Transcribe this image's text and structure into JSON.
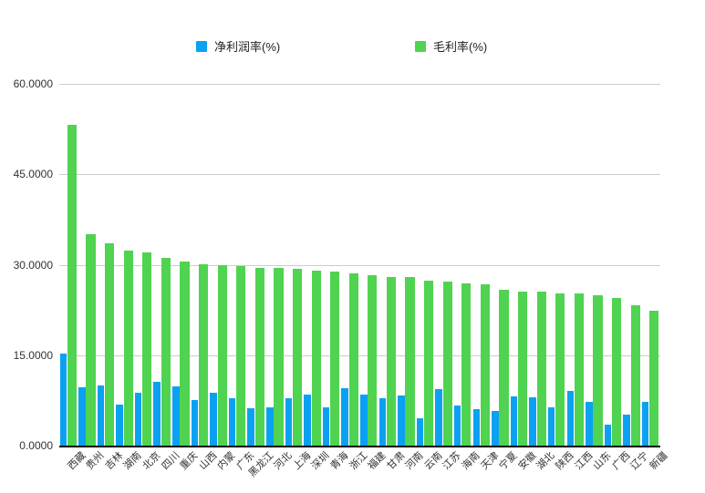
{
  "colors": {
    "net_margin_blue": "#0aa1f2",
    "gross_margin_green": "#50d350",
    "gridline": "#cccccc",
    "axis": "#000000",
    "tick_text": "#333333"
  },
  "chart_data": {
    "type": "bar",
    "title": "",
    "xlabel": "",
    "ylabel": "",
    "legend_position": "top",
    "grid": true,
    "ylim": [
      0,
      60
    ],
    "ytick_values": [
      0,
      15,
      30,
      45,
      60
    ],
    "ytick_labels": [
      "0.0000",
      "15.0000",
      "30.0000",
      "45.0000",
      "60.0000"
    ],
    "categories": [
      "西藏",
      "贵州",
      "吉林",
      "湖南",
      "北京",
      "四川",
      "重庆",
      "山西",
      "内蒙",
      "广东",
      "黑龙江",
      "河北",
      "上海",
      "深圳",
      "青海",
      "浙江",
      "福建",
      "甘肃",
      "河南",
      "云南",
      "江苏",
      "海南",
      "天津",
      "宁夏",
      "安徽",
      "湖北",
      "陕西",
      "江西",
      "山东",
      "广西",
      "辽宁",
      "新疆"
    ],
    "series": [
      {
        "name": "净利润率(%)",
        "color": "#0aa1f2",
        "values": [
          15.2,
          9.6,
          10.0,
          6.8,
          8.7,
          10.6,
          9.8,
          7.6,
          8.7,
          7.9,
          6.2,
          6.4,
          7.8,
          8.4,
          6.3,
          9.5,
          8.5,
          7.8,
          8.3,
          4.5,
          9.4,
          6.6,
          6.0,
          5.7,
          8.1,
          8.0,
          6.3,
          9.0,
          7.3,
          3.5,
          5.2,
          7.2
        ]
      },
      {
        "name": "毛利率(%)",
        "color": "#50d350",
        "values": [
          53.2,
          35.0,
          33.6,
          32.3,
          32.0,
          31.2,
          30.6,
          30.1,
          29.9,
          29.8,
          29.5,
          29.4,
          29.3,
          29.0,
          28.9,
          28.6,
          28.3,
          28.0,
          27.9,
          27.4,
          27.2,
          26.9,
          26.7,
          25.9,
          25.6,
          25.5,
          25.3,
          25.2,
          24.9,
          24.5,
          23.3,
          22.4
        ]
      }
    ]
  }
}
